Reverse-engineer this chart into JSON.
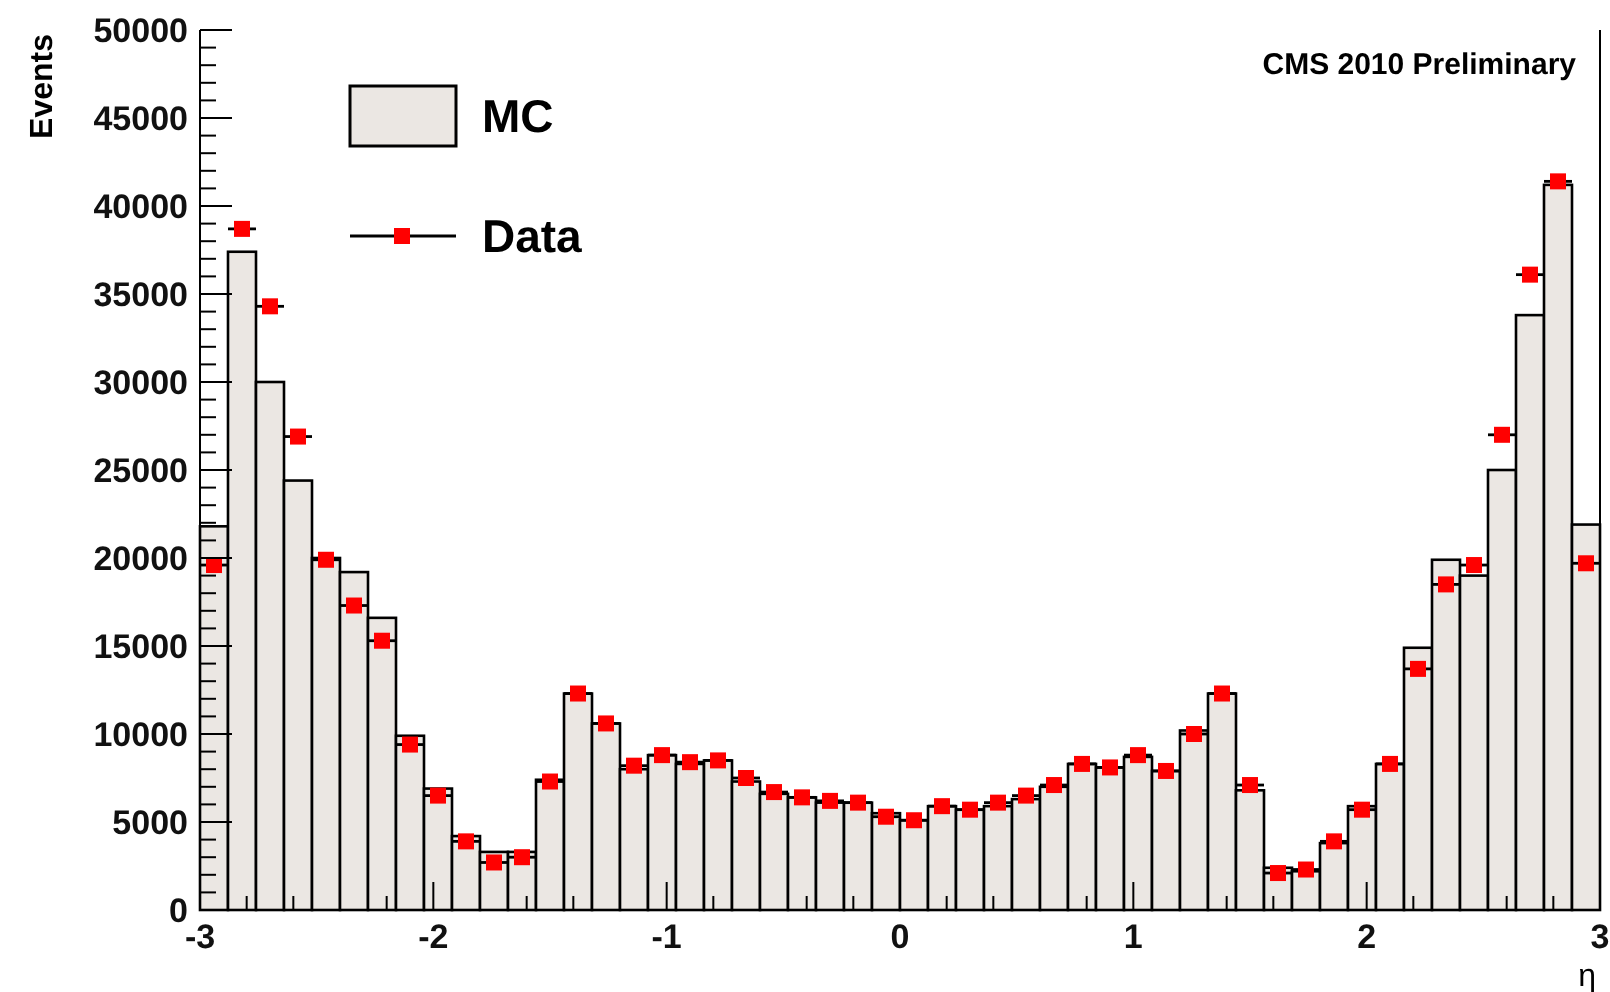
{
  "chart_data": {
    "type": "histogram",
    "xlabel": "η",
    "ylabel": "Events",
    "annotations": [
      "CMS 2010 Preliminary"
    ],
    "bins": [
      -3,
      -2.88,
      -2.76,
      -2.64,
      -2.52,
      -2.4,
      -2.28,
      -2.16,
      -2.04,
      -1.92,
      -1.8,
      -1.68,
      -1.56,
      -1.44,
      -1.32,
      -1.2,
      -1.08,
      -0.96,
      -0.84,
      -0.72,
      -0.6,
      -0.48,
      -0.36,
      -0.24,
      -0.12,
      0,
      0.12,
      0.24,
      0.36,
      0.48,
      0.6,
      0.72,
      0.84,
      0.96,
      1.08,
      1.2,
      1.32,
      1.44,
      1.56,
      1.68,
      1.8,
      1.92,
      2.04,
      2.16,
      2.28,
      2.4,
      2.52,
      2.64,
      2.76,
      2.88,
      3
    ],
    "series": [
      {
        "name": "MC",
        "color": "#ebe7e3",
        "values": [
          21800,
          37400,
          30000,
          24400,
          20000,
          19200,
          16600,
          9900,
          6900,
          4200,
          3300,
          3300,
          7400,
          12300,
          10600,
          8000,
          8800,
          8300,
          8500,
          7300,
          6600,
          6400,
          6100,
          6100,
          5500,
          5100,
          5900,
          5700,
          5900,
          6300,
          7000,
          8300,
          8100,
          8700,
          7900,
          10200,
          12300,
          6800,
          2400,
          2200,
          3800,
          5900,
          8300,
          14900,
          19900,
          19000,
          25000,
          33800,
          41200,
          21900
        ]
      },
      {
        "name": "Data",
        "type": "scatter",
        "color": "#ff0000",
        "marker": "square",
        "x": [
          -2.94,
          -2.82,
          -2.7,
          -2.58,
          -2.46,
          -2.34,
          -2.22,
          -2.1,
          -1.98,
          -1.86,
          -1.74,
          -1.62,
          -1.5,
          -1.38,
          -1.26,
          -1.14,
          -1.02,
          -0.9,
          -0.78,
          -0.66,
          -0.54,
          -0.42,
          -0.3,
          -0.18,
          -0.06,
          0.06,
          0.18,
          0.3,
          0.42,
          0.54,
          0.66,
          0.78,
          0.9,
          1.02,
          1.14,
          1.26,
          1.38,
          1.5,
          1.62,
          1.74,
          1.86,
          1.98,
          2.1,
          2.22,
          2.34,
          2.46,
          2.58,
          2.7,
          2.82,
          2.94
        ],
        "values": [
          19600,
          38700,
          34300,
          26900,
          19900,
          17300,
          15300,
          9400,
          6500,
          3900,
          2700,
          3000,
          7300,
          12300,
          10600,
          8200,
          8800,
          8400,
          8500,
          7500,
          6700,
          6400,
          6200,
          6100,
          5300,
          5100,
          5900,
          5700,
          6100,
          6500,
          7100,
          8300,
          8100,
          8800,
          7900,
          10000,
          12300,
          7100,
          2100,
          2300,
          3900,
          5700,
          8300,
          13700,
          18500,
          19600,
          27000,
          36100,
          41400,
          19700
        ],
        "xerrors": [
          0.06,
          0.06,
          0.06,
          0.06,
          0.06,
          0.06,
          0.06,
          0.06,
          0.06,
          0.06,
          0.06,
          0.06,
          0.06,
          0.06,
          0.06,
          0.06,
          0.06,
          0.06,
          0.06,
          0.06,
          0.06,
          0.06,
          0.06,
          0.06,
          0.06,
          0.06,
          0.06,
          0.06,
          0.06,
          0.06,
          0.06,
          0.06,
          0.06,
          0.06,
          0.06,
          0.06,
          0.06,
          0.06,
          0.06,
          0.06,
          0.06,
          0.06,
          0.06,
          0.06,
          0.06,
          0.06,
          0.06,
          0.06,
          0.06,
          0.06
        ]
      }
    ],
    "xlim": [
      -3,
      3
    ],
    "xticks": [
      -3,
      -2,
      -1,
      0,
      1,
      2,
      3
    ],
    "ylim": [
      0,
      50000
    ],
    "yticks": [
      0,
      5000,
      10000,
      15000,
      20000,
      25000,
      30000,
      35000,
      40000,
      45000,
      50000
    ],
    "legend": "top left"
  }
}
